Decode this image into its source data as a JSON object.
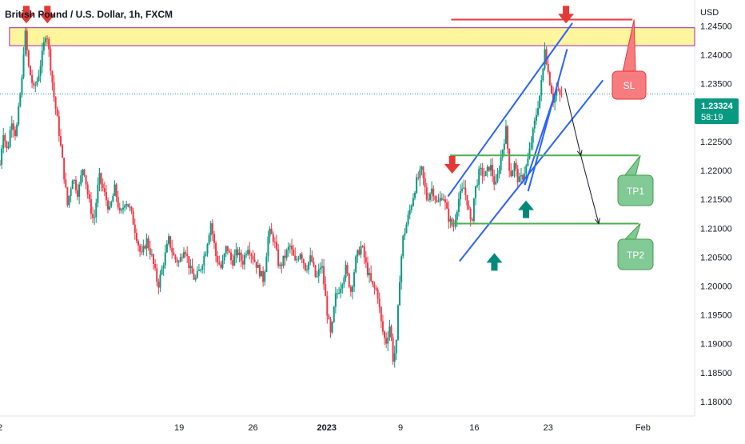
{
  "colors": {
    "up": "#089981",
    "down": "#f23645",
    "trend": "#2962ff",
    "target": "#4caf50",
    "resistance_fill": "#fff59d",
    "resistance_border": "#9c27b0",
    "stop": "#f23645",
    "tp_box": "#81c995",
    "sl_box": "#f77c80",
    "price_tag": "#089981",
    "arrow_down": "#e53935",
    "arrow_up": "#00897b"
  },
  "chart_data": {
    "type": "candlestick",
    "title": "British Pound / U.S. Dollar, 1h, FXCM",
    "currency": "USD",
    "y_ticks": [
      "1.24500",
      "1.24000",
      "1.23500",
      "1.23000",
      "1.22500",
      "1.22000",
      "1.21500",
      "1.21000",
      "1.20500",
      "1.20000",
      "1.19500",
      "1.19000",
      "1.18500",
      "1.18000"
    ],
    "y_tick_values": [
      1.245,
      1.24,
      1.235,
      1.23,
      1.225,
      1.22,
      1.215,
      1.21,
      1.205,
      1.2,
      1.195,
      1.19,
      1.185,
      1.18
    ],
    "ylim": [
      1.1775,
      1.2495
    ],
    "x_ticks": [
      "2",
      "19",
      "26",
      "2023",
      "9",
      "16",
      "23",
      "Feb"
    ],
    "x_tick_values": [
      2,
      19,
      26,
      33,
      40,
      47,
      54,
      63
    ],
    "xlim": [
      2,
      67.9
    ],
    "x_unit": "trading days from the first visible session (Dec 2022 – Feb 2023)",
    "current_price": "1.23324",
    "countdown": "58:19",
    "path": [
      [
        2,
        1.221
      ],
      [
        2.3,
        1.227
      ],
      [
        2.7,
        1.223
      ],
      [
        3.1,
        1.229
      ],
      [
        3.5,
        1.226
      ],
      [
        3.8,
        1.231
      ],
      [
        4.1,
        1.236
      ],
      [
        4.35,
        1.2445
      ],
      [
        4.7,
        1.238
      ],
      [
        5.2,
        1.234
      ],
      [
        5.6,
        1.236
      ],
      [
        6.0,
        1.24
      ],
      [
        6.4,
        1.2445
      ],
      [
        6.8,
        1.238
      ],
      [
        7.1,
        1.233
      ],
      [
        7.5,
        1.228
      ],
      [
        7.9,
        1.222
      ],
      [
        8.4,
        1.214
      ],
      [
        8.9,
        1.219
      ],
      [
        9.4,
        1.216
      ],
      [
        9.9,
        1.221
      ],
      [
        10.4,
        1.215
      ],
      [
        10.9,
        1.211
      ],
      [
        11.4,
        1.219
      ],
      [
        11.9,
        1.216
      ],
      [
        12.4,
        1.213
      ],
      [
        12.9,
        1.217
      ],
      [
        13.4,
        1.212
      ],
      [
        13.9,
        1.215
      ],
      [
        14.4,
        1.213
      ],
      [
        14.9,
        1.209
      ],
      [
        15.4,
        1.205
      ],
      [
        15.9,
        1.208
      ],
      [
        16.4,
        1.205
      ],
      [
        17.0,
        1.2
      ],
      [
        17.5,
        1.204
      ],
      [
        18.0,
        1.208
      ],
      [
        18.5,
        1.205
      ],
      [
        19.0,
        1.204
      ],
      [
        19.5,
        1.207
      ],
      [
        20.0,
        1.203
      ],
      [
        20.5,
        1.201
      ],
      [
        21.0,
        1.203
      ],
      [
        21.5,
        1.206
      ],
      [
        22.0,
        1.211
      ],
      [
        22.5,
        1.205
      ],
      [
        23.0,
        1.203
      ],
      [
        23.5,
        1.207
      ],
      [
        24.0,
        1.204
      ],
      [
        24.5,
        1.206
      ],
      [
        25.0,
        1.204
      ],
      [
        25.5,
        1.207
      ],
      [
        26.0,
        1.205
      ],
      [
        26.5,
        1.203
      ],
      [
        27.0,
        1.201
      ],
      [
        27.5,
        1.2095
      ],
      [
        28.0,
        1.208
      ],
      [
        28.5,
        1.203
      ],
      [
        29.0,
        1.205
      ],
      [
        29.5,
        1.207
      ],
      [
        30.0,
        1.204
      ],
      [
        30.5,
        1.206
      ],
      [
        31.0,
        1.203
      ],
      [
        31.5,
        1.205
      ],
      [
        32.0,
        1.201
      ],
      [
        32.5,
        1.204
      ],
      [
        33.0,
        1.196
      ],
      [
        33.4,
        1.191
      ],
      [
        33.8,
        1.198
      ],
      [
        34.3,
        1.2
      ],
      [
        34.8,
        1.203
      ],
      [
        35.3,
        1.199
      ],
      [
        35.8,
        1.205
      ],
      [
        36.3,
        1.207
      ],
      [
        36.8,
        1.203
      ],
      [
        37.3,
        1.2
      ],
      [
        37.8,
        1.199
      ],
      [
        38.2,
        1.193
      ],
      [
        38.6,
        1.19
      ],
      [
        39.0,
        1.1935
      ],
      [
        39.3,
        1.187
      ],
      [
        39.6,
        1.19
      ],
      [
        39.9,
        1.201
      ],
      [
        40.2,
        1.208
      ],
      [
        40.6,
        1.211
      ],
      [
        41.0,
        1.214
      ],
      [
        41.5,
        1.218
      ],
      [
        42.0,
        1.22
      ],
      [
        42.5,
        1.215
      ],
      [
        43.0,
        1.217
      ],
      [
        43.5,
        1.214
      ],
      [
        44.0,
        1.216
      ],
      [
        44.5,
        1.212
      ],
      [
        45.0,
        1.21
      ],
      [
        45.5,
        1.215
      ],
      [
        46.0,
        1.217
      ],
      [
        46.4,
        1.214
      ],
      [
        46.7,
        1.21
      ],
      [
        47.0,
        1.216
      ],
      [
        47.5,
        1.22
      ],
      [
        48.0,
        1.219
      ],
      [
        48.5,
        1.221
      ],
      [
        49.0,
        1.217
      ],
      [
        49.5,
        1.222
      ],
      [
        50.0,
        1.227
      ],
      [
        50.4,
        1.219
      ],
      [
        50.8,
        1.221
      ],
      [
        51.2,
        1.218
      ],
      [
        51.6,
        1.219
      ],
      [
        52.0,
        1.221
      ],
      [
        52.3,
        1.224
      ],
      [
        52.6,
        1.227
      ],
      [
        52.9,
        1.23
      ],
      [
        53.2,
        1.233
      ],
      [
        53.5,
        1.237
      ],
      [
        53.7,
        1.242
      ],
      [
        53.9,
        1.238
      ],
      [
        54.2,
        1.235
      ],
      [
        54.5,
        1.232
      ],
      [
        54.8,
        1.234
      ],
      [
        55.1,
        1.233
      ],
      [
        55.4,
        1.2332
      ]
    ]
  },
  "annotations": {
    "sl_label": "SL",
    "tp1_label": "TP1",
    "tp2_label": "TP2",
    "resistance_zone": [
      1.2416,
      1.2447
    ],
    "sl_level": 1.2461,
    "tp1_level": 1.2226,
    "tp2_level": 1.2108,
    "upper_channel": [
      [
        44.5,
        1.2155
      ],
      [
        56.3,
        1.2455
      ]
    ],
    "lower_channel": [
      [
        45.6,
        1.2043
      ],
      [
        59.2,
        1.2356
      ]
    ],
    "wedge_upper": [
      [
        52.1,
        1.2164
      ],
      [
        55.8,
        1.241
      ]
    ],
    "wedge_lower": [
      [
        51.8,
        1.2175
      ],
      [
        54.7,
        1.2335
      ]
    ],
    "projection_1": [
      [
        55.6,
        1.2342
      ],
      [
        57.1,
        1.2226
      ]
    ],
    "projection_2": [
      [
        57.1,
        1.2226
      ],
      [
        58.8,
        1.2108
      ]
    ],
    "down_arrows": [
      [
        4.5,
        1.2485
      ],
      [
        6.5,
        1.2485
      ],
      [
        44.9,
        1.2225
      ],
      [
        55.7,
        1.2485
      ]
    ],
    "up_arrows": [
      [
        48.9,
        1.2057
      ],
      [
        51.9,
        1.2148
      ]
    ]
  }
}
